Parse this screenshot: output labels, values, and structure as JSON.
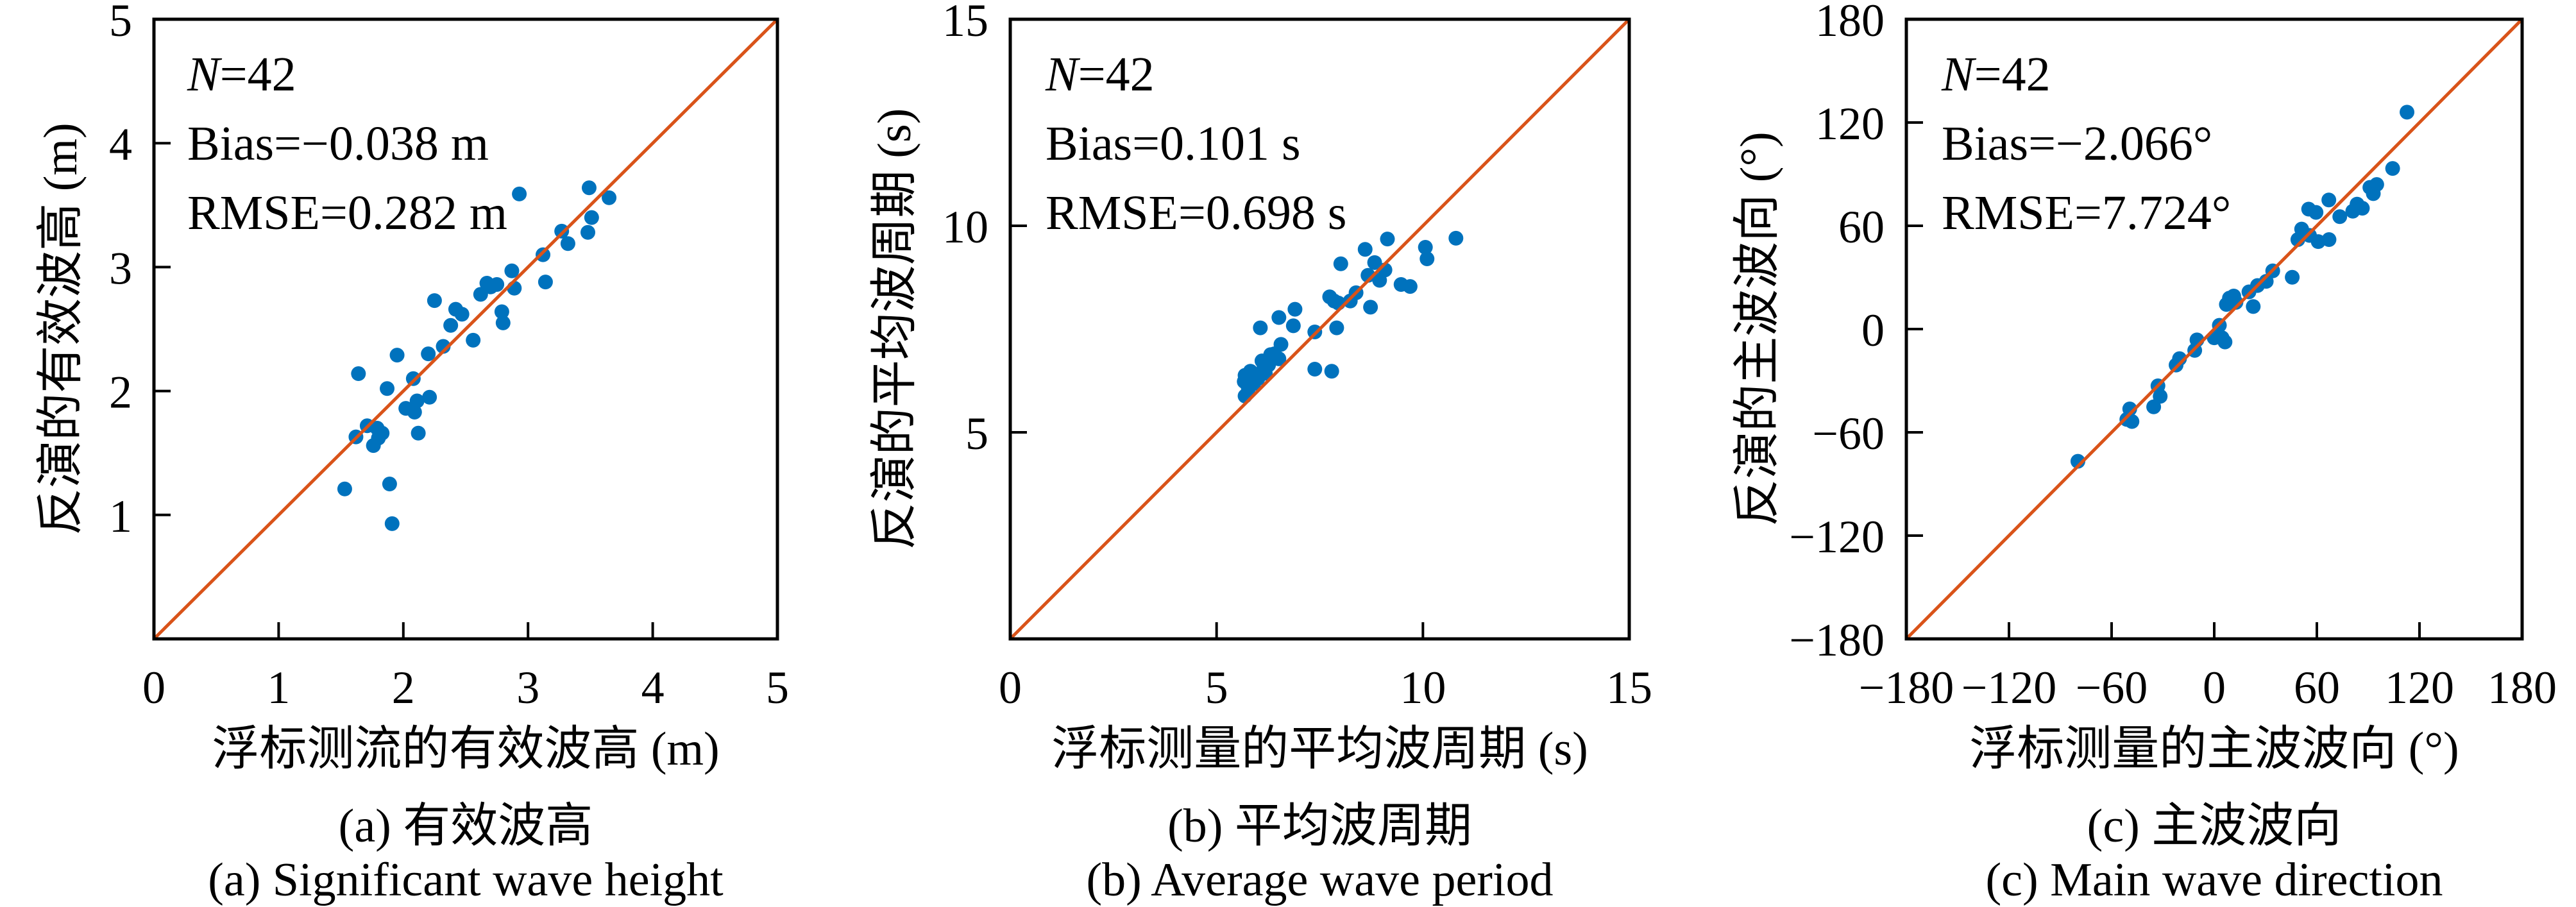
{
  "style": {
    "background": "#FFFFFF",
    "marker_color": "#0072BD",
    "line_color": "#D95319",
    "axis_color": "#000000"
  },
  "chart_data": [
    {
      "id": "a",
      "type": "scatter",
      "annotation": {
        "n_italic": "N",
        "n_rest": "=42",
        "bias": "Bias=−0.038 m",
        "rmse": "RMSE=0.282 m"
      },
      "xlabel": "浮标测流的有效波高 (m)",
      "ylabel": "反演的有效波高 (m)",
      "caption_zh": "(a) 有效波高",
      "caption_en": "(a) Significant wave height",
      "xlim": [
        0,
        5
      ],
      "ylim": [
        0,
        5
      ],
      "xticks": {
        "values": [
          0,
          1,
          2,
          3,
          4,
          5
        ],
        "labels": [
          "0",
          "1",
          "2",
          "3",
          "4",
          "5"
        ]
      },
      "yticks": {
        "values": [
          1,
          2,
          3,
          4,
          5
        ],
        "labels": [
          "1",
          "2",
          "3",
          "4",
          "5"
        ]
      },
      "reference_line": {
        "from": [
          0,
          0
        ],
        "to": [
          5,
          5
        ]
      },
      "grid": false,
      "points": [
        [
          1.53,
          1.21
        ],
        [
          1.62,
          1.63
        ],
        [
          1.64,
          2.14
        ],
        [
          1.71,
          1.72
        ],
        [
          1.76,
          1.56
        ],
        [
          1.79,
          1.7
        ],
        [
          1.8,
          1.62
        ],
        [
          1.83,
          1.66
        ],
        [
          1.87,
          2.02
        ],
        [
          1.89,
          1.25
        ],
        [
          1.91,
          0.93
        ],
        [
          1.95,
          2.29
        ],
        [
          2.02,
          1.86
        ],
        [
          2.08,
          2.1
        ],
        [
          2.09,
          1.83
        ],
        [
          2.11,
          1.92
        ],
        [
          2.12,
          1.66
        ],
        [
          2.2,
          2.3
        ],
        [
          2.21,
          1.95
        ],
        [
          2.25,
          2.73
        ],
        [
          2.32,
          2.36
        ],
        [
          2.38,
          2.53
        ],
        [
          2.42,
          2.66
        ],
        [
          2.47,
          2.62
        ],
        [
          2.56,
          2.41
        ],
        [
          2.62,
          2.78
        ],
        [
          2.67,
          2.87
        ],
        [
          2.7,
          2.84
        ],
        [
          2.75,
          2.86
        ],
        [
          2.79,
          2.64
        ],
        [
          2.8,
          2.55
        ],
        [
          2.87,
          2.97
        ],
        [
          2.89,
          2.83
        ],
        [
          2.93,
          3.59
        ],
        [
          3.12,
          3.1
        ],
        [
          3.14,
          2.88
        ],
        [
          3.27,
          3.29
        ],
        [
          3.32,
          3.19
        ],
        [
          3.48,
          3.28
        ],
        [
          3.49,
          3.64
        ],
        [
          3.51,
          3.4
        ],
        [
          3.65,
          3.56
        ]
      ]
    },
    {
      "id": "b",
      "type": "scatter",
      "annotation": {
        "n_italic": "N",
        "n_rest": "=42",
        "bias": "Bias=0.101 s",
        "rmse": "RMSE=0.698 s"
      },
      "xlabel": "浮标测量的平均波周期 (s)",
      "ylabel": "反演的平均波周期 (s)",
      "caption_zh": "(b) 平均波周期",
      "caption_en": "(b) Average wave period",
      "xlim": [
        0,
        15
      ],
      "ylim": [
        0,
        15
      ],
      "xticks": {
        "values": [
          0,
          5,
          10,
          15
        ],
        "labels": [
          "0",
          "5",
          "10",
          "15"
        ]
      },
      "yticks": {
        "values": [
          5,
          10,
          15
        ],
        "labels": [
          "5",
          "10",
          "15"
        ]
      },
      "reference_line": {
        "from": [
          0,
          0
        ],
        "to": [
          15,
          15
        ]
      },
      "grid": false,
      "points": [
        [
          5.67,
          6.23
        ],
        [
          5.69,
          5.88
        ],
        [
          5.69,
          6.38
        ],
        [
          5.77,
          6.06
        ],
        [
          5.82,
          6.48
        ],
        [
          5.9,
          6.18
        ],
        [
          5.95,
          6.4
        ],
        [
          6.0,
          6.3
        ],
        [
          6.06,
          7.53
        ],
        [
          6.1,
          6.73
        ],
        [
          6.15,
          6.58
        ],
        [
          6.18,
          6.43
        ],
        [
          6.26,
          6.63
        ],
        [
          6.31,
          6.88
        ],
        [
          6.4,
          6.9
        ],
        [
          6.51,
          6.78
        ],
        [
          6.51,
          7.78
        ],
        [
          6.56,
          7.13
        ],
        [
          6.86,
          7.58
        ],
        [
          6.9,
          7.98
        ],
        [
          7.38,
          6.53
        ],
        [
          7.38,
          7.43
        ],
        [
          7.74,
          8.28
        ],
        [
          7.79,
          6.48
        ],
        [
          7.85,
          8.18
        ],
        [
          7.91,
          7.53
        ],
        [
          7.95,
          8.13
        ],
        [
          8.01,
          9.08
        ],
        [
          8.24,
          8.18
        ],
        [
          8.38,
          8.38
        ],
        [
          8.6,
          9.43
        ],
        [
          8.67,
          8.8
        ],
        [
          8.73,
          8.03
        ],
        [
          8.83,
          9.11
        ],
        [
          8.95,
          8.68
        ],
        [
          9.08,
          8.93
        ],
        [
          9.14,
          9.68
        ],
        [
          9.47,
          8.58
        ],
        [
          9.69,
          8.53
        ],
        [
          10.06,
          9.48
        ],
        [
          10.1,
          9.2
        ],
        [
          10.8,
          9.7
        ]
      ]
    },
    {
      "id": "c",
      "type": "scatter",
      "annotation": {
        "n_italic": "N",
        "n_rest": "=42",
        "bias": "Bias=−2.066°",
        "rmse": "RMSE=7.724°"
      },
      "xlabel": "浮标测量的主波波向 (°)",
      "ylabel": "反演的主波波向 (°)",
      "caption_zh": "(c) 主波波向",
      "caption_en": "(c) Main wave direction",
      "xlim": [
        -180,
        180
      ],
      "ylim": [
        -180,
        180
      ],
      "xticks": {
        "values": [
          -180,
          -120,
          -60,
          0,
          60,
          120,
          180
        ],
        "labels": [
          "−180",
          "−120",
          "−60",
          "0",
          "60",
          "120",
          "180"
        ]
      },
      "yticks": {
        "values": [
          -180,
          -120,
          -60,
          0,
          60,
          120,
          180
        ],
        "labels": [
          "−180",
          "−120",
          "−60",
          "0",
          "60",
          "120",
          "180"
        ]
      },
      "reference_line": {
        "from": [
          -180,
          -180
        ],
        "to": [
          180,
          180
        ]
      },
      "grid": false,
      "points": [
        [
          -79.7,
          -76.8
        ],
        [
          -51.1,
          -52.5
        ],
        [
          -49.4,
          -46.4
        ],
        [
          -48.1,
          -53.7
        ],
        [
          -35.4,
          -45.2
        ],
        [
          -32.9,
          -33.0
        ],
        [
          -31.6,
          -39.1
        ],
        [
          -22.3,
          -20.9
        ],
        [
          -20.3,
          -17.2
        ],
        [
          -11.4,
          -12.4
        ],
        [
          -10.1,
          -6.3
        ],
        [
          0.0,
          -5.1
        ],
        [
          3.0,
          2.2
        ],
        [
          4.6,
          -5.1
        ],
        [
          6.3,
          -7.5
        ],
        [
          7.1,
          14.3
        ],
        [
          8.9,
          18.0
        ],
        [
          11.4,
          19.2
        ],
        [
          12.7,
          15.5
        ],
        [
          20.3,
          21.6
        ],
        [
          22.8,
          13.1
        ],
        [
          25.3,
          25.3
        ],
        [
          30.4,
          27.7
        ],
        [
          34.2,
          33.8
        ],
        [
          45.6,
          30.1
        ],
        [
          48.9,
          52.0
        ],
        [
          51.1,
          58.1
        ],
        [
          55.2,
          69.7
        ],
        [
          55.7,
          54.4
        ],
        [
          59.5,
          67.8
        ],
        [
          60.8,
          50.8
        ],
        [
          67.0,
          75.0
        ],
        [
          67.1,
          52.0
        ],
        [
          73.4,
          65.3
        ],
        [
          81.0,
          68.5
        ],
        [
          83.5,
          72.6
        ],
        [
          86.6,
          70.2
        ],
        [
          91.0,
          82.3
        ],
        [
          93.0,
          78.7
        ],
        [
          95.0,
          84.0
        ],
        [
          104.3,
          93.3
        ],
        [
          112.7,
          126.0
        ]
      ]
    }
  ]
}
